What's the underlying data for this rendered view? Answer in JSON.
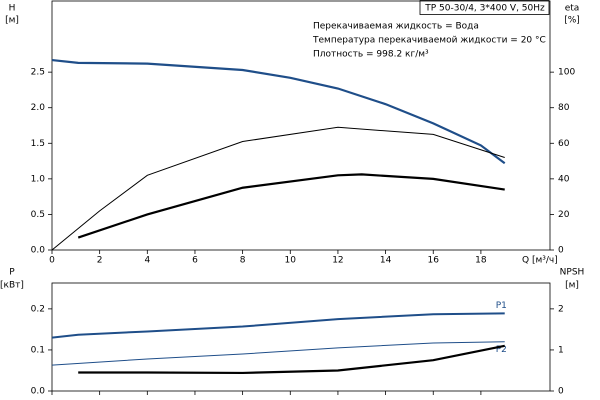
{
  "chart_data": [
    {
      "type": "line",
      "title": "TP 50-30/4, 3*400 V, 50Hz",
      "annotations": [
        "Перекачиваемая жидкость = Вода",
        "Температура перекачиваемой жидкости = 20 °C",
        "Плотность = 998.2 кг/м³"
      ],
      "ylabel": "H",
      "yunit": "[м]",
      "y2label": "eta",
      "y2unit": "[%]",
      "xlabel": "Q [м³/ч]",
      "xlim": [
        0,
        20.9
      ],
      "xticks": [
        0,
        2,
        4,
        6,
        8,
        10,
        12,
        14,
        16,
        18
      ],
      "ylim": [
        0,
        3.5
      ],
      "yticks": [
        {
          "value": 0,
          "label": "0.0"
        },
        0.5,
        {
          "value": 1,
          "label": "1.0"
        },
        1.5,
        {
          "value": 2,
          "label": "2.0"
        },
        2.5
      ],
      "y2lim": [
        0,
        140
      ],
      "y2ticks": [
        0,
        20,
        40,
        60,
        80,
        100
      ],
      "series": [
        {
          "color": "#1f4e89",
          "line_width": 2.2,
          "x": [
            0,
            1.1,
            4,
            8,
            10,
            12,
            14,
            16,
            18,
            19
          ],
          "values": [
            2.67,
            2.63,
            2.62,
            2.53,
            2.42,
            2.27,
            2.05,
            1.78,
            1.47,
            1.22
          ]
        },
        {
          "color": "#000000",
          "line_width": 1,
          "axis": "y2",
          "x": [
            0,
            2,
            4,
            8,
            12,
            16,
            19
          ],
          "values": [
            0,
            22,
            42,
            61,
            69,
            65,
            52
          ]
        },
        {
          "color": "#000000",
          "line_width": 2.2,
          "axis": "y2",
          "x": [
            1.1,
            4,
            8,
            12,
            13,
            16,
            19
          ],
          "values": [
            7,
            20,
            35,
            42,
            42.5,
            40,
            34
          ]
        }
      ]
    },
    {
      "type": "line",
      "ylabel": "P",
      "yunit": "[кВт]",
      "y2label": "NPSH",
      "y2unit": "[м]",
      "xlim": [
        0,
        20.9
      ],
      "ylim": [
        0,
        0.263
      ],
      "yticks": [
        {
          "value": 0,
          "label": "0.0"
        },
        0.1,
        0.2
      ],
      "y2lim": [
        0,
        2.63
      ],
      "y2ticks": [
        0,
        1,
        2
      ],
      "series": [
        {
          "name": "P1",
          "color": "#1f4e89",
          "line_width": 2,
          "x": [
            0,
            1.1,
            4,
            8,
            12,
            16,
            19
          ],
          "values": [
            0.13,
            0.137,
            0.145,
            0.157,
            0.175,
            0.187,
            0.189
          ]
        },
        {
          "name": "P2",
          "color": "#1f4e89",
          "line_width": 1,
          "x": [
            0,
            4,
            8,
            12,
            16,
            19
          ],
          "values": [
            0.063,
            0.078,
            0.09,
            0.105,
            0.117,
            0.12
          ]
        },
        {
          "color": "#000000",
          "line_width": 2.2,
          "axis": "y2",
          "x": [
            1.1,
            4,
            8,
            12,
            16,
            19
          ],
          "values": [
            0.45,
            0.45,
            0.44,
            0.5,
            0.75,
            1.1
          ]
        }
      ]
    }
  ]
}
